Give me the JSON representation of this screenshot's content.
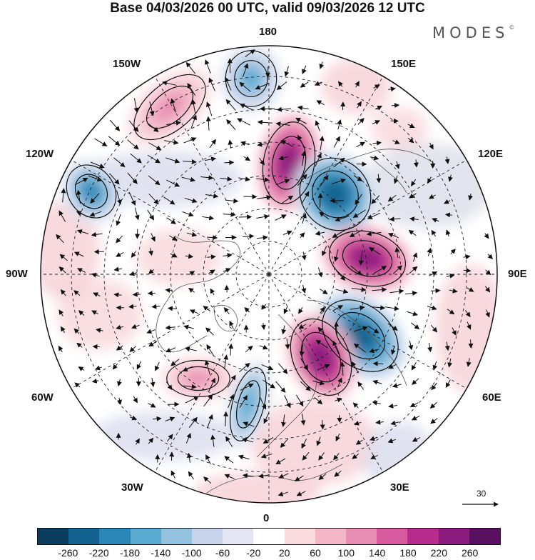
{
  "title": "Base 04/03/2026 00 UTC, valid 09/03/2026 12 UTC",
  "brand": "MODES",
  "brand_mark": "©",
  "longitude_labels": {
    "top": "180",
    "bottom": "0",
    "left": "90W",
    "right": "90E",
    "upper_left": "150W",
    "upper_right": "150E",
    "left_upper": "120W",
    "right_upper": "120E",
    "left_lower": "60W",
    "right_lower": "60E",
    "lower_left": "30W",
    "lower_right": "30E"
  },
  "vector_reference": "30",
  "colorbar": {
    "ticks": [
      "-260",
      "-220",
      "-180",
      "-140",
      "-100",
      "-60",
      "-20",
      "20",
      "60",
      "100",
      "140",
      "180",
      "220",
      "260"
    ],
    "colors": [
      "#0d3d5e",
      "#14628f",
      "#2a87b8",
      "#5aa9d1",
      "#95c3df",
      "#c7d4eb",
      "#e4e6f3",
      "#ffffff",
      "#fadcdf",
      "#f3b7c8",
      "#e88db3",
      "#d75a9e",
      "#b82c8d",
      "#8b1b7f",
      "#5a1060"
    ]
  },
  "anomaly_centers": [
    {
      "name": "neg-120w",
      "lon_label": "120W",
      "sign": "negative",
      "strength": -200
    },
    {
      "name": "neg-165w",
      "lon_label": "165W",
      "sign": "negative",
      "strength": -140
    },
    {
      "name": "pos-150w",
      "lon_label": "150W",
      "sign": "positive",
      "strength": 120
    },
    {
      "name": "pos-170e",
      "lon_label": "170E",
      "sign": "positive",
      "strength": 250
    },
    {
      "name": "neg-135e",
      "lon_label": "135E",
      "sign": "negative",
      "strength": -230
    },
    {
      "name": "pos-90e",
      "lon_label": "90E",
      "sign": "positive",
      "strength": 260
    },
    {
      "name": "neg-50e",
      "lon_label": "50E",
      "sign": "negative",
      "strength": -240
    },
    {
      "name": "pos-20e",
      "lon_label": "20E",
      "sign": "positive",
      "strength": 230
    },
    {
      "name": "neg-10w",
      "lon_label": "10W",
      "sign": "negative",
      "strength": -170
    },
    {
      "name": "pos-50w",
      "lon_label": "50W",
      "sign": "positive",
      "strength": 110
    }
  ]
}
